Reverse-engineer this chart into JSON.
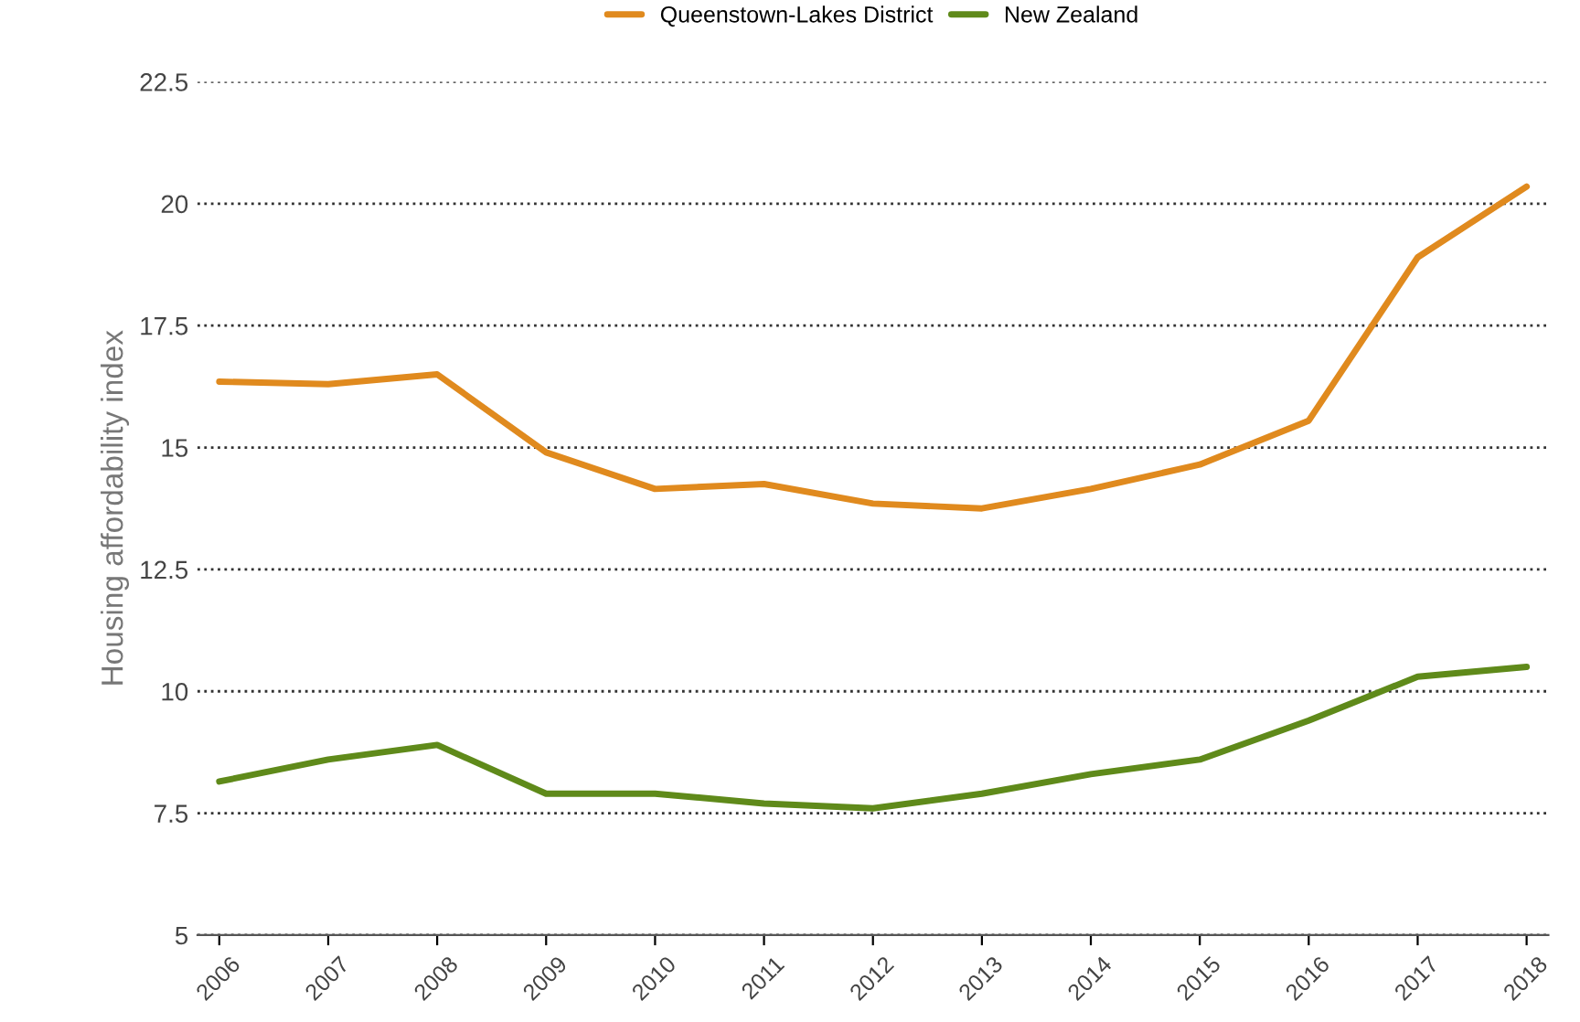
{
  "chart_data": {
    "type": "line",
    "ylabel": "Housing affordability index",
    "categories": [
      "2006",
      "2007",
      "2008",
      "2009",
      "2010",
      "2011",
      "2012",
      "2013",
      "2014",
      "2015",
      "2016",
      "2017",
      "2018"
    ],
    "series": [
      {
        "name": "Queenstown-Lakes District",
        "color": "#e08a1e",
        "values": [
          16.35,
          16.3,
          16.5,
          14.9,
          14.15,
          14.25,
          13.85,
          13.75,
          14.15,
          14.65,
          15.55,
          18.9,
          20.35
        ]
      },
      {
        "name": "New Zealand",
        "color": "#5f8a1a",
        "values": [
          8.15,
          8.6,
          8.9,
          7.9,
          7.9,
          7.7,
          7.6,
          7.9,
          8.3,
          8.6,
          9.4,
          10.3,
          10.5
        ]
      }
    ],
    "ylim": [
      5,
      22.5
    ],
    "yticks": [
      5,
      7.5,
      10,
      12.5,
      15,
      17.5,
      20,
      22.5
    ],
    "grid": "y",
    "legend": "top",
    "marker": "none",
    "line_style": "solid"
  }
}
